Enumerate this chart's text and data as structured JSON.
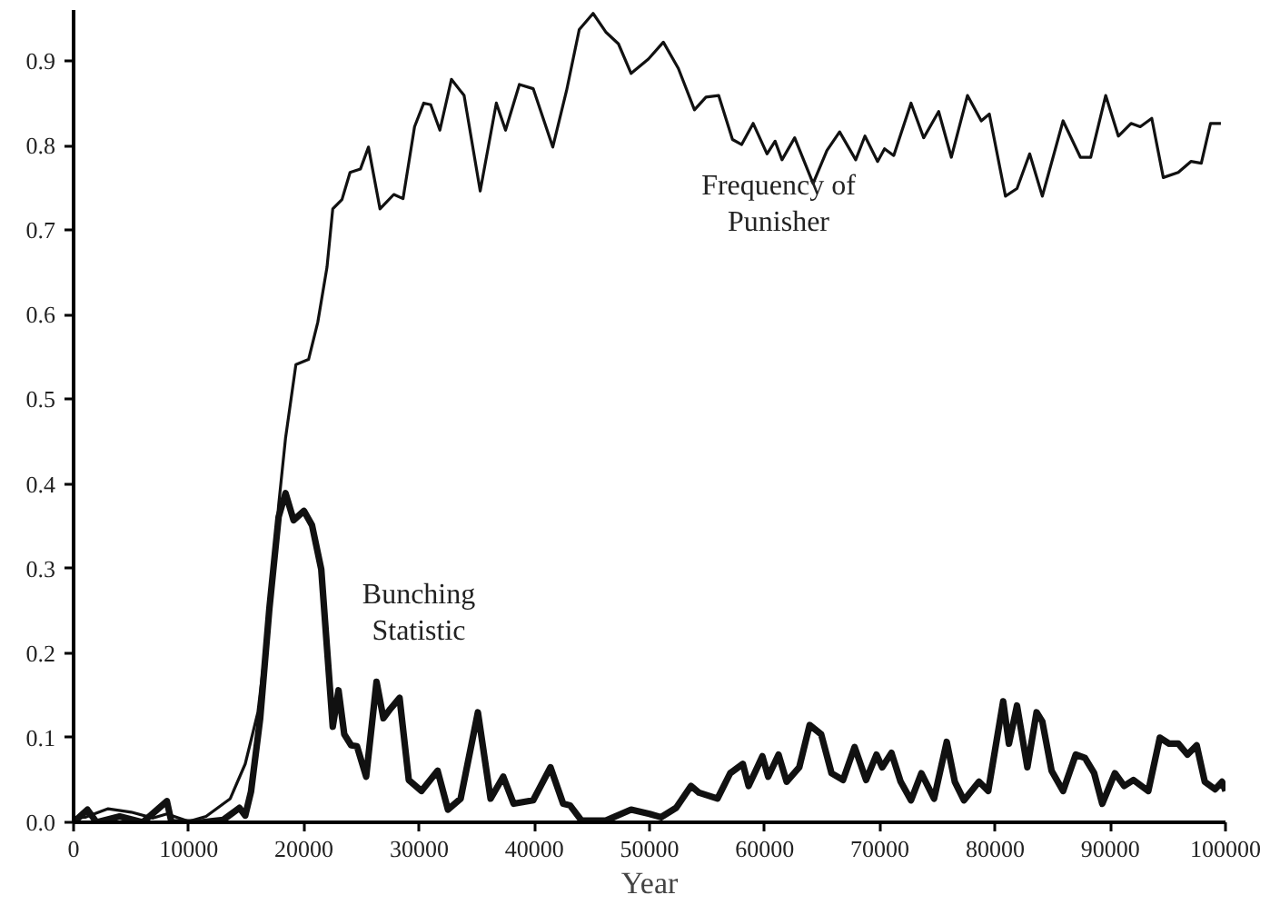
{
  "chart_data": {
    "type": "line",
    "xlabel": "Year",
    "xlim": [
      0,
      100000
    ],
    "ylim": [
      0,
      0.96
    ],
    "xticks": [
      0,
      10000,
      20000,
      30000,
      40000,
      50000,
      60000,
      70000,
      80000,
      90000,
      100000
    ],
    "yticks": [
      {
        "value": 0,
        "label": "0.0"
      },
      0.1,
      0.2,
      0.3,
      0.4,
      0.5,
      0.6,
      0.7,
      0.8,
      0.9
    ],
    "grid": false,
    "legend": false,
    "marker": "none",
    "line_style": "solid",
    "series": [
      {
        "name": "Frequency of\nPunisher",
        "color": "#111111",
        "x": [
          0,
          1000,
          3000,
          5000,
          6900,
          8100,
          10000,
          11500,
          13600,
          14900,
          16000,
          17000,
          17800,
          18400,
          19300,
          20400,
          21200,
          22000,
          22500,
          23300,
          24000,
          24900,
          25600,
          26600,
          27800,
          28600,
          29600,
          30400,
          31000,
          31800,
          32800,
          33900,
          35300,
          36700,
          37500,
          38700,
          39900,
          41600,
          42800,
          43900,
          45100,
          46200,
          47300,
          48400,
          49900,
          51200,
          52500,
          53900,
          54900,
          56000,
          57200,
          58000,
          59000,
          60200,
          60900,
          61500,
          62600,
          64200,
          65400,
          66500,
          67900,
          68700,
          69800,
          70400,
          71200,
          72700,
          73800,
          75100,
          76200,
          77600,
          78800,
          79500,
          80900,
          81900,
          83000,
          84100,
          85900,
          87400,
          88300,
          89600,
          90700,
          91800,
          92600,
          93600,
          94600,
          95900,
          97000,
          97900,
          98700,
          99600
        ],
        "values": [
          0.005,
          0.006,
          0.016,
          0.012,
          0.005,
          0.01,
          0.001,
          0.007,
          0.028,
          0.069,
          0.13,
          0.245,
          0.375,
          0.454,
          0.541,
          0.547,
          0.591,
          0.656,
          0.725,
          0.736,
          0.768,
          0.772,
          0.798,
          0.725,
          0.742,
          0.737,
          0.822,
          0.85,
          0.848,
          0.818,
          0.878,
          0.859,
          0.746,
          0.85,
          0.818,
          0.872,
          0.867,
          0.798,
          0.865,
          0.937,
          0.956,
          0.934,
          0.92,
          0.885,
          0.902,
          0.922,
          0.891,
          0.842,
          0.857,
          0.859,
          0.807,
          0.801,
          0.826,
          0.79,
          0.805,
          0.783,
          0.809,
          0.755,
          0.794,
          0.816,
          0.783,
          0.811,
          0.781,
          0.796,
          0.788,
          0.85,
          0.809,
          0.84,
          0.786,
          0.859,
          0.829,
          0.837,
          0.74,
          0.749,
          0.79,
          0.74,
          0.829,
          0.786,
          0.786,
          0.859,
          0.811,
          0.826,
          0.822,
          0.832,
          0.762,
          0.768,
          0.781,
          0.779,
          0.826,
          0.826
        ]
      },
      {
        "name": "Bunching\nStatistic",
        "color": "#111111",
        "x": [
          0,
          1200,
          2000,
          4000,
          6000,
          8100,
          8500,
          11000,
          13000,
          14400,
          14900,
          15400,
          16200,
          17000,
          17800,
          18400,
          19100,
          20000,
          20700,
          21500,
          22500,
          23000,
          23500,
          24100,
          24600,
          25400,
          26300,
          26900,
          27500,
          28300,
          29100,
          30200,
          31600,
          32500,
          33600,
          35100,
          36200,
          37300,
          38200,
          39900,
          41400,
          42500,
          43100,
          44100,
          46200,
          48400,
          50000,
          51000,
          52300,
          53600,
          54300,
          55900,
          57000,
          58100,
          58600,
          59800,
          60300,
          61200,
          61900,
          63000,
          63900,
          64900,
          65800,
          66800,
          67800,
          68800,
          69700,
          70200,
          71000,
          71800,
          72700,
          73600,
          74700,
          75800,
          76500,
          77300,
          78600,
          79400,
          80700,
          81200,
          81900,
          82800,
          83600,
          84100,
          84900,
          85900,
          87000,
          87800,
          88600,
          89300,
          90400,
          91200,
          92000,
          93300,
          94300,
          95100,
          95900,
          96700,
          97500,
          98200,
          99100,
          99700,
          100000
        ],
        "values": [
          0.0,
          0.015,
          0.0,
          0.007,
          0.0,
          0.025,
          0.0,
          0.0,
          0.003,
          0.017,
          0.008,
          0.036,
          0.123,
          0.253,
          0.361,
          0.389,
          0.357,
          0.368,
          0.351,
          0.299,
          0.113,
          0.156,
          0.104,
          0.091,
          0.09,
          0.054,
          0.166,
          0.123,
          0.134,
          0.147,
          0.05,
          0.037,
          0.061,
          0.015,
          0.028,
          0.13,
          0.028,
          0.054,
          0.022,
          0.026,
          0.065,
          0.022,
          0.02,
          0.002,
          0.002,
          0.015,
          0.01,
          0.006,
          0.017,
          0.043,
          0.035,
          0.028,
          0.058,
          0.069,
          0.043,
          0.078,
          0.054,
          0.08,
          0.048,
          0.065,
          0.115,
          0.104,
          0.058,
          0.05,
          0.089,
          0.05,
          0.08,
          0.065,
          0.082,
          0.048,
          0.026,
          0.058,
          0.028,
          0.095,
          0.048,
          0.026,
          0.048,
          0.037,
          0.143,
          0.093,
          0.138,
          0.065,
          0.13,
          0.119,
          0.061,
          0.037,
          0.08,
          0.076,
          0.058,
          0.022,
          0.058,
          0.043,
          0.05,
          0.037,
          0.1,
          0.093,
          0.093,
          0.08,
          0.091,
          0.048,
          0.039,
          0.048,
          0.037
        ]
      }
    ]
  }
}
